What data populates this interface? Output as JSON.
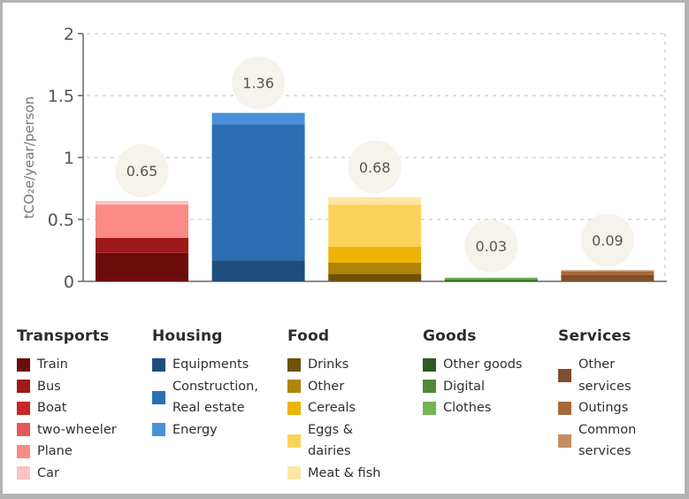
{
  "chart_data": {
    "type": "bar",
    "stacked": true,
    "ylabel": "tCO₂e/year/person",
    "ylim": [
      0,
      2
    ],
    "yticks": [
      "0",
      "0.5",
      "1",
      "1.5",
      "2"
    ],
    "ytick_values": [
      0,
      0.5,
      1,
      1.5,
      2
    ],
    "grid": true,
    "categories": [
      "Transports",
      "Housing",
      "Food",
      "Goods",
      "Services"
    ],
    "totals": [
      "0.65",
      "1.36",
      "0.68",
      "0.03",
      "0.09"
    ],
    "total_values": [
      0.65,
      1.36,
      0.68,
      0.03,
      0.09
    ],
    "groups": [
      {
        "name": "Transports",
        "segments": [
          {
            "name": "Train",
            "value": 0.23,
            "color": "#6b0c0c"
          },
          {
            "name": "Bus",
            "value": 0.12,
            "color": "#9e1a1a"
          },
          {
            "name": "Boat",
            "value": 0.0,
            "color": "#c62828"
          },
          {
            "name": "two-wheeler",
            "value": 0.0,
            "color": "#e35858"
          },
          {
            "name": "Plane",
            "value": 0.27,
            "color": "#f98a84"
          },
          {
            "name": "Car",
            "value": 0.03,
            "color": "#fbc4c2"
          }
        ]
      },
      {
        "name": "Housing",
        "segments": [
          {
            "name": "Equipments",
            "value": 0.17,
            "color": "#1d4d7f"
          },
          {
            "name": "Construction,\nReal estate",
            "value": 1.1,
            "color": "#2a6fb3"
          },
          {
            "name": "Energy",
            "value": 0.09,
            "color": "#4a90d9"
          }
        ]
      },
      {
        "name": "Food",
        "segments": [
          {
            "name": "Drinks",
            "value": 0.06,
            "color": "#6e5208"
          },
          {
            "name": "Other",
            "value": 0.09,
            "color": "#ae8508"
          },
          {
            "name": "Cereals",
            "value": 0.13,
            "color": "#efb306"
          },
          {
            "name": "Eggs &\ndairies",
            "value": 0.34,
            "color": "#fbd35a"
          },
          {
            "name": "Meat & fish",
            "value": 0.06,
            "color": "#fbe6a8"
          }
        ]
      },
      {
        "name": "Goods",
        "segments": [
          {
            "name": "Other goods",
            "value": 0.01,
            "color": "#2f5a22"
          },
          {
            "name": "Digital",
            "value": 0.01,
            "color": "#4e8a35"
          },
          {
            "name": "Clothes",
            "value": 0.01,
            "color": "#72b555"
          }
        ]
      },
      {
        "name": "Services",
        "segments": [
          {
            "name": "Other\nservices",
            "value": 0.05,
            "color": "#7f4f2a"
          },
          {
            "name": "Outings",
            "value": 0.03,
            "color": "#a8683a"
          },
          {
            "name": "Common\nservices",
            "value": 0.01,
            "color": "#c48e62"
          }
        ]
      }
    ]
  }
}
